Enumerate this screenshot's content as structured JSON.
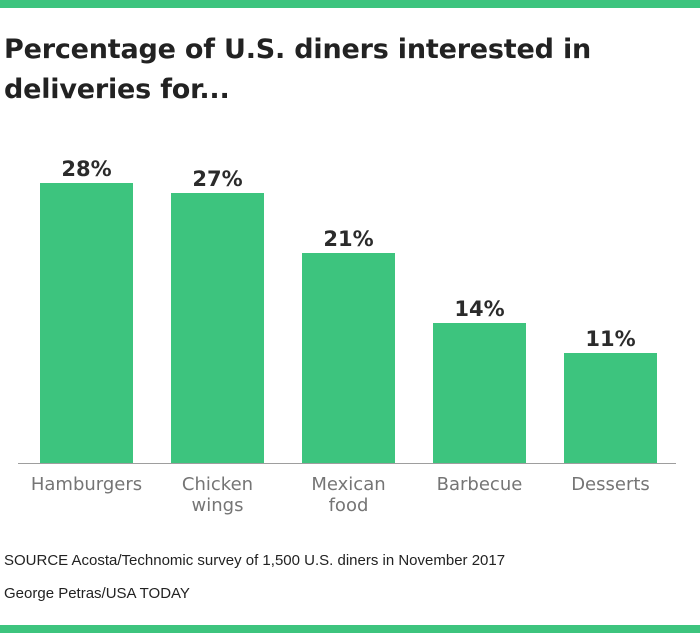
{
  "title": "Percentage of U.S. diners interested in deliveries for...",
  "source": "SOURCE Acosta/Technomic survey of 1,500 U.S. diners in November 2017",
  "credit": "George Petras/USA TODAY",
  "colors": {
    "bar": "#3dc47e",
    "rule": "#3dc47e",
    "value_label": "#2b2b2b",
    "category_label": "#757575",
    "baseline": "#9e9e9e"
  },
  "chart_data": {
    "type": "bar",
    "categories": [
      "Hamburgers",
      "Chicken wings",
      "Mexican food",
      "Barbecue",
      "Desserts"
    ],
    "category_lines": [
      [
        "Hamburgers"
      ],
      [
        "Chicken",
        "wings"
      ],
      [
        "Mexican",
        "food"
      ],
      [
        "Barbecue"
      ],
      [
        "Desserts"
      ]
    ],
    "values": [
      28,
      27,
      21,
      14,
      11
    ],
    "data_labels": [
      "28%",
      "27%",
      "21%",
      "14%",
      "11%"
    ],
    "ylim": [
      0,
      30
    ],
    "grid": false
  }
}
